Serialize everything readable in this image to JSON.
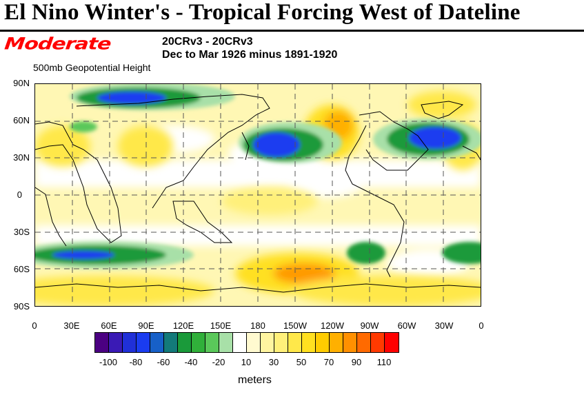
{
  "headline": "El Nino Winter's - Tropical Forcing West of Dateline",
  "annotation": "Moderate",
  "subtitle_line1": "20CRv3 - 20CRv3",
  "subtitle_line2": "Dec to Mar 1926 minus 1891-1920",
  "variable": "500mb Geopotential Height",
  "lat_labels": [
    "90N",
    "60N",
    "30N",
    "0",
    "30S",
    "60S",
    "90S"
  ],
  "lon_labels": [
    "0",
    "30E",
    "60E",
    "90E",
    "120E",
    "150E",
    "180",
    "150W",
    "120W",
    "90W",
    "60W",
    "30W",
    "0"
  ],
  "colorbar": {
    "colors": [
      "#4b0082",
      "#3a1ab5",
      "#2030d8",
      "#1a3cf0",
      "#1760c8",
      "#137a7a",
      "#1a9a3a",
      "#30b03a",
      "#5ac85a",
      "#a8e0a8",
      "#ffffff",
      "#fffad0",
      "#fff5a0",
      "#fff07a",
      "#ffe84a",
      "#ffe020",
      "#ffcc00",
      "#ffb000",
      "#ff9000",
      "#ff6a00",
      "#ff3a00",
      "#ff0000"
    ],
    "labels": [
      "-100",
      "-80",
      "-60",
      "-40",
      "-20",
      "10",
      "30",
      "50",
      "70",
      "90",
      "110"
    ],
    "units": "meters"
  },
  "map_colors": {
    "strong_neg": "#1a2fd8",
    "mod_neg": "#1a9a3a",
    "weak_neg": "#a8e0a8",
    "weak_pos": "#fff5a0",
    "mod_pos": "#ffe020",
    "strong_pos": "#ff9000",
    "coast": "#000000"
  }
}
